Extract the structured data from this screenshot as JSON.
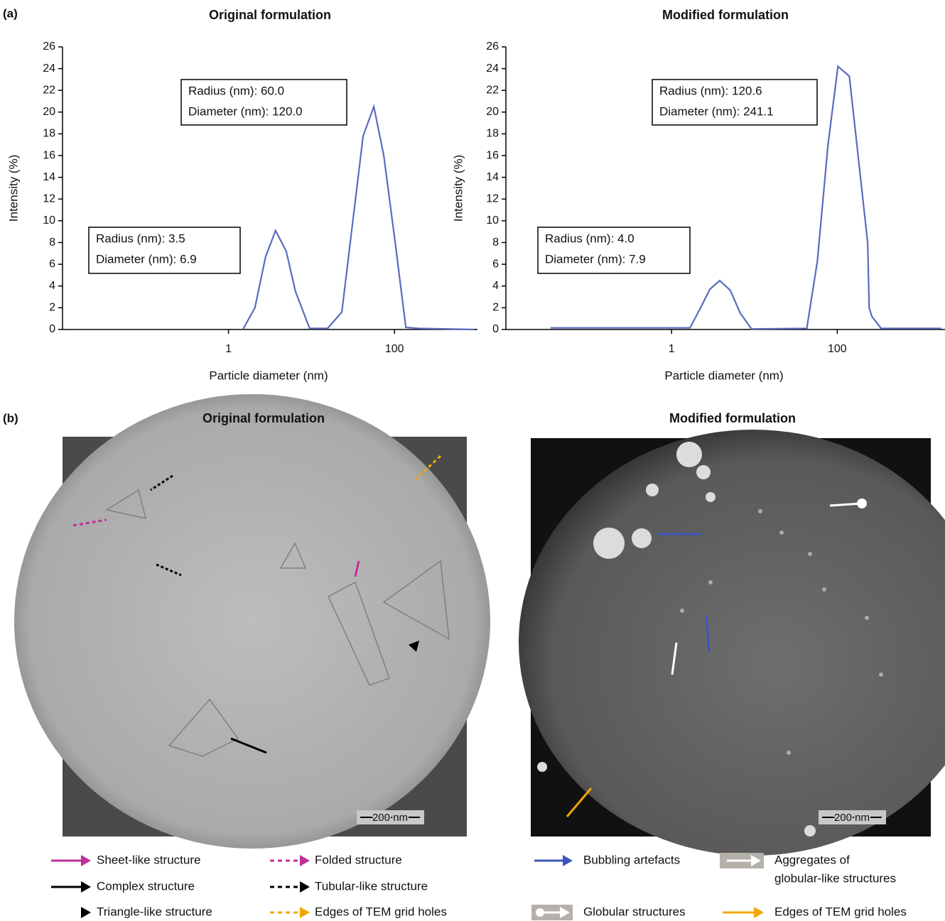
{
  "panel_labels": [
    "(a)",
    "(b)"
  ],
  "chart_data": [
    {
      "type": "line",
      "title": "Original formulation",
      "xlabel": "Particle diameter (nm)",
      "ylabel": "Intensity (%)",
      "xscale": "log",
      "xlim": [
        0.01,
        1000
      ],
      "xticks": [
        1,
        100
      ],
      "ylim": [
        0,
        26
      ],
      "yticks": [
        0,
        2,
        4,
        6,
        8,
        10,
        12,
        14,
        16,
        18,
        20,
        22,
        24,
        26
      ],
      "grid": false,
      "x": [
        1.49,
        2.08,
        2.8,
        3.69,
        4.96,
        6.41,
        9.5,
        15.6,
        23.2,
        41.9,
        56.4,
        74.3,
        102,
        137,
        196,
        897
      ],
      "series": [
        {
          "color": "#5b6bbd",
          "values": [
            0,
            2,
            6.7,
            9.1,
            7.2,
            3.5,
            0.1,
            0.1,
            1.6,
            17.8,
            20.5,
            16,
            8,
            0.2,
            0.1,
            0
          ]
        }
      ],
      "annotations": [
        [
          "Radius (nm): 60.0",
          "Diameter (nm): 120.0"
        ],
        [
          "Radius (nm): 3.5",
          "Diameter (nm): 6.9"
        ]
      ]
    },
    {
      "type": "line",
      "title": "Modified formulation",
      "xlabel": "Particle diameter (nm)",
      "ylabel": "Intensity (%)",
      "xscale": "log",
      "xlim": [
        0.01,
        2000
      ],
      "xticks": [
        1,
        100
      ],
      "ylim": [
        0,
        26
      ],
      "yticks": [
        0,
        2,
        4,
        6,
        8,
        10,
        12,
        14,
        16,
        18,
        20,
        22,
        24,
        26
      ],
      "grid": false,
      "x": [
        0.0345,
        1.67,
        2.24,
        2.9,
        3.81,
        5.12,
        6.75,
        9.25,
        42.9,
        57.6,
        77.4,
        102,
        140,
        233,
        243,
        262,
        339,
        1800
      ],
      "series": [
        {
          "color": "#5b6bbd",
          "values": [
            0.15,
            0.15,
            2,
            3.7,
            4.5,
            3.6,
            1.5,
            0.05,
            0.1,
            6.3,
            17,
            24.2,
            23.3,
            8,
            2,
            1.2,
            0.1,
            0.1
          ]
        }
      ],
      "annotations": [
        [
          "Radius (nm): 120.6",
          "Diameter (nm): 241.1"
        ],
        [
          "Radius (nm): 4.0",
          "Diameter (nm): 7.9"
        ]
      ]
    }
  ],
  "images": [
    {
      "title": "Original formulation",
      "scale_bar": "200 nm",
      "legend": [
        {
          "lines": [
            "Sheet-like structure"
          ],
          "color": "#c0309a",
          "style": "solid"
        },
        {
          "lines": [
            "Folded structure"
          ],
          "color": "#c0309a",
          "style": "dashed"
        },
        {
          "lines": [
            "Complex structure"
          ],
          "color": "#000000",
          "style": "solid"
        },
        {
          "lines": [
            "Tubular-like structure"
          ],
          "color": "#000000",
          "style": "dashed"
        },
        {
          "lines": [
            "Triangle-like structure"
          ],
          "color": "#000000",
          "style": "triangle"
        },
        {
          "lines": [
            "Edges of TEM grid holes"
          ],
          "color": "#f0a800",
          "style": "dashed"
        }
      ]
    },
    {
      "title": "Modified formulation",
      "scale_bar": "200 nm",
      "legend": [
        {
          "lines": [
            "Bubbling artefacts"
          ],
          "color": "#3d55b8",
          "style": "solid"
        },
        {
          "lines": [
            "Aggregates of",
            "globular-like structures"
          ],
          "color": "#b5b0aa",
          "style": "box"
        },
        {
          "lines": [
            "Globular structures"
          ],
          "color": "#b5b0aa",
          "style": "box-circle"
        },
        {
          "lines": [
            "Edges of TEM grid holes"
          ],
          "color": "#f0a800",
          "style": "solid"
        }
      ]
    }
  ]
}
